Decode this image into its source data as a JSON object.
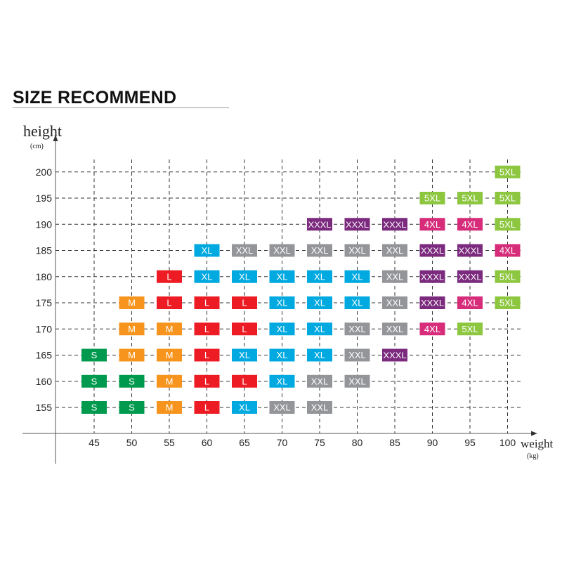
{
  "title": "SIZE RECOMMEND",
  "chart_data": {
    "type": "table",
    "ylabel": "height",
    "yunit": "(cm)",
    "xlabel": "weight",
    "xunit": "(kg)",
    "x": [
      45,
      50,
      55,
      60,
      65,
      70,
      75,
      80,
      85,
      90,
      95,
      100
    ],
    "y": [
      155,
      160,
      165,
      170,
      175,
      180,
      185,
      190,
      195,
      200
    ],
    "grid": true,
    "colors": {
      "S": "#009a4e",
      "M": "#f7941d",
      "L": "#ed1c24",
      "XL": "#00a9e0",
      "XXL": "#939598",
      "XXXL": "#7b2a7e",
      "4XL": "#d62c7a",
      "5XL": "#8dc63f"
    },
    "cells": [
      {
        "weight": 100,
        "height": 200,
        "size": "5XL"
      },
      {
        "weight": 90,
        "height": 195,
        "size": "5XL"
      },
      {
        "weight": 95,
        "height": 195,
        "size": "5XL"
      },
      {
        "weight": 100,
        "height": 195,
        "size": "5XL"
      },
      {
        "weight": 75,
        "height": 190,
        "size": "XXXL"
      },
      {
        "weight": 80,
        "height": 190,
        "size": "XXXL"
      },
      {
        "weight": 85,
        "height": 190,
        "size": "XXXL"
      },
      {
        "weight": 90,
        "height": 190,
        "size": "4XL"
      },
      {
        "weight": 95,
        "height": 190,
        "size": "4XL"
      },
      {
        "weight": 100,
        "height": 190,
        "size": "5XL"
      },
      {
        "weight": 60,
        "height": 185,
        "size": "XL"
      },
      {
        "weight": 65,
        "height": 185,
        "size": "XXL"
      },
      {
        "weight": 70,
        "height": 185,
        "size": "XXL"
      },
      {
        "weight": 75,
        "height": 185,
        "size": "XXL"
      },
      {
        "weight": 80,
        "height": 185,
        "size": "XXL"
      },
      {
        "weight": 85,
        "height": 185,
        "size": "XXL"
      },
      {
        "weight": 90,
        "height": 185,
        "size": "XXXL"
      },
      {
        "weight": 95,
        "height": 185,
        "size": "XXXL"
      },
      {
        "weight": 100,
        "height": 185,
        "size": "4XL"
      },
      {
        "weight": 55,
        "height": 180,
        "size": "L"
      },
      {
        "weight": 60,
        "height": 180,
        "size": "XL"
      },
      {
        "weight": 65,
        "height": 180,
        "size": "XL"
      },
      {
        "weight": 70,
        "height": 180,
        "size": "XL"
      },
      {
        "weight": 75,
        "height": 180,
        "size": "XL"
      },
      {
        "weight": 80,
        "height": 180,
        "size": "XL"
      },
      {
        "weight": 85,
        "height": 180,
        "size": "XXL"
      },
      {
        "weight": 90,
        "height": 180,
        "size": "XXXL"
      },
      {
        "weight": 95,
        "height": 180,
        "size": "XXXL"
      },
      {
        "weight": 100,
        "height": 180,
        "size": "5XL"
      },
      {
        "weight": 50,
        "height": 175,
        "size": "M"
      },
      {
        "weight": 55,
        "height": 175,
        "size": "L"
      },
      {
        "weight": 60,
        "height": 175,
        "size": "L"
      },
      {
        "weight": 65,
        "height": 175,
        "size": "L"
      },
      {
        "weight": 70,
        "height": 175,
        "size": "XL"
      },
      {
        "weight": 75,
        "height": 175,
        "size": "XL"
      },
      {
        "weight": 80,
        "height": 175,
        "size": "XL"
      },
      {
        "weight": 85,
        "height": 175,
        "size": "XXL"
      },
      {
        "weight": 90,
        "height": 175,
        "size": "XXXL"
      },
      {
        "weight": 95,
        "height": 175,
        "size": "4XL"
      },
      {
        "weight": 100,
        "height": 175,
        "size": "5XL"
      },
      {
        "weight": 50,
        "height": 170,
        "size": "M"
      },
      {
        "weight": 55,
        "height": 170,
        "size": "M"
      },
      {
        "weight": 60,
        "height": 170,
        "size": "L"
      },
      {
        "weight": 65,
        "height": 170,
        "size": "L"
      },
      {
        "weight": 70,
        "height": 170,
        "size": "XL"
      },
      {
        "weight": 75,
        "height": 170,
        "size": "XL"
      },
      {
        "weight": 80,
        "height": 170,
        "size": "XXL"
      },
      {
        "weight": 85,
        "height": 170,
        "size": "XXL"
      },
      {
        "weight": 90,
        "height": 170,
        "size": "4XL"
      },
      {
        "weight": 95,
        "height": 170,
        "size": "5XL"
      },
      {
        "weight": 45,
        "height": 165,
        "size": "S"
      },
      {
        "weight": 50,
        "height": 165,
        "size": "M"
      },
      {
        "weight": 55,
        "height": 165,
        "size": "M"
      },
      {
        "weight": 60,
        "height": 165,
        "size": "L"
      },
      {
        "weight": 65,
        "height": 165,
        "size": "XL"
      },
      {
        "weight": 70,
        "height": 165,
        "size": "XL"
      },
      {
        "weight": 75,
        "height": 165,
        "size": "XL"
      },
      {
        "weight": 80,
        "height": 165,
        "size": "XXL"
      },
      {
        "weight": 85,
        "height": 165,
        "size": "XXXL"
      },
      {
        "weight": 45,
        "height": 160,
        "size": "S"
      },
      {
        "weight": 50,
        "height": 160,
        "size": "S"
      },
      {
        "weight": 55,
        "height": 160,
        "size": "M"
      },
      {
        "weight": 60,
        "height": 160,
        "size": "L"
      },
      {
        "weight": 65,
        "height": 160,
        "size": "L"
      },
      {
        "weight": 70,
        "height": 160,
        "size": "XL"
      },
      {
        "weight": 75,
        "height": 160,
        "size": "XXL"
      },
      {
        "weight": 80,
        "height": 160,
        "size": "XXL"
      },
      {
        "weight": 45,
        "height": 155,
        "size": "S"
      },
      {
        "weight": 50,
        "height": 155,
        "size": "S"
      },
      {
        "weight": 55,
        "height": 155,
        "size": "M"
      },
      {
        "weight": 60,
        "height": 155,
        "size": "L"
      },
      {
        "weight": 65,
        "height": 155,
        "size": "XL"
      },
      {
        "weight": 70,
        "height": 155,
        "size": "XXL"
      },
      {
        "weight": 75,
        "height": 155,
        "size": "XXL"
      }
    ]
  }
}
